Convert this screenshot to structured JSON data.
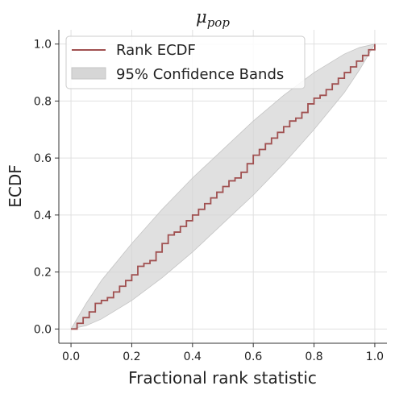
{
  "chart_data": {
    "type": "line",
    "title": "μ",
    "title_sub": "pop",
    "xlabel": "Fractional rank statistic",
    "ylabel": "ECDF",
    "xlim": [
      -0.04,
      1.04
    ],
    "ylim": [
      -0.05,
      1.05
    ],
    "xticks": [
      "0.0",
      "0.2",
      "0.4",
      "0.6",
      "0.8",
      "1.0"
    ],
    "yticks": [
      "0.0",
      "0.2",
      "0.4",
      "0.6",
      "0.8",
      "1.0"
    ],
    "grid": true,
    "legend_position": "top-left",
    "series": [
      {
        "name": "Rank ECDF",
        "color": "#a05050",
        "x": [
          0.0,
          0.02,
          0.04,
          0.06,
          0.08,
          0.1,
          0.12,
          0.14,
          0.16,
          0.18,
          0.2,
          0.22,
          0.24,
          0.26,
          0.28,
          0.3,
          0.32,
          0.34,
          0.36,
          0.38,
          0.4,
          0.42,
          0.44,
          0.46,
          0.48,
          0.5,
          0.52,
          0.54,
          0.56,
          0.58,
          0.6,
          0.62,
          0.64,
          0.66,
          0.68,
          0.7,
          0.72,
          0.74,
          0.76,
          0.78,
          0.8,
          0.82,
          0.84,
          0.86,
          0.88,
          0.9,
          0.92,
          0.94,
          0.96,
          0.98,
          1.0
        ],
        "y": [
          0.0,
          0.02,
          0.04,
          0.06,
          0.09,
          0.1,
          0.11,
          0.13,
          0.15,
          0.17,
          0.19,
          0.22,
          0.23,
          0.24,
          0.27,
          0.3,
          0.33,
          0.34,
          0.36,
          0.38,
          0.4,
          0.42,
          0.44,
          0.46,
          0.48,
          0.5,
          0.52,
          0.53,
          0.55,
          0.58,
          0.61,
          0.63,
          0.65,
          0.67,
          0.69,
          0.71,
          0.73,
          0.74,
          0.76,
          0.79,
          0.81,
          0.82,
          0.84,
          0.86,
          0.88,
          0.9,
          0.92,
          0.94,
          0.96,
          0.98,
          1.0
        ]
      },
      {
        "name": "95% Confidence Bands",
        "color": "#c8c8c8",
        "x": [
          0.0,
          0.05,
          0.1,
          0.2,
          0.3,
          0.4,
          0.5,
          0.6,
          0.7,
          0.8,
          0.9,
          0.95,
          1.0
        ],
        "lower": [
          0.0,
          0.012,
          0.035,
          0.1,
          0.18,
          0.27,
          0.37,
          0.47,
          0.58,
          0.7,
          0.83,
          0.91,
          1.0
        ],
        "upper": [
          0.0,
          0.09,
          0.17,
          0.3,
          0.42,
          0.53,
          0.63,
          0.73,
          0.82,
          0.9,
          0.965,
          0.988,
          1.0
        ]
      }
    ]
  }
}
